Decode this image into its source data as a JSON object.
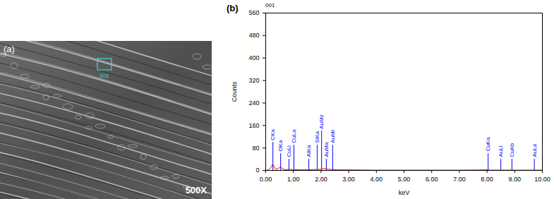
{
  "image": {
    "label": "(a)",
    "magnification": "500X",
    "region_label": "001"
  },
  "chart_data": {
    "type": "line",
    "label": "(b)",
    "title": "001",
    "x_label": "keV",
    "y_label": "Counts",
    "color": "#ff0000",
    "x": [
      0,
      0.1,
      0.2,
      0.25,
      0.3,
      0.35,
      0.4,
      0.5,
      0.55,
      0.6,
      0.7,
      0.8,
      0.9,
      1.0,
      1.2,
      1.5,
      1.7,
      2.0,
      2.1,
      2.2,
      2.4,
      2.6,
      3.0,
      4.0,
      5.0,
      6.0,
      7.0,
      8.0,
      8.1,
      9.0,
      10.0
    ],
    "values": [
      0,
      2,
      12,
      22,
      15,
      5,
      4,
      10,
      12,
      6,
      3,
      3,
      4,
      3,
      2,
      2,
      3,
      4,
      7,
      5,
      3,
      2,
      2,
      1,
      1,
      1,
      1,
      2,
      1,
      1,
      1
    ],
    "xlim": [
      0,
      10
    ],
    "xticks": [
      {
        "value": 0,
        "label": "0.00"
      },
      {
        "value": 1,
        "label": "1.00"
      },
      {
        "value": 2,
        "label": "2.00"
      },
      {
        "value": 3,
        "label": "3.00"
      },
      {
        "value": 4,
        "label": "4.00"
      },
      {
        "value": 5,
        "label": "5.00"
      },
      {
        "value": 6,
        "label": "6.00"
      },
      {
        "value": 7,
        "label": "7.00"
      },
      {
        "value": 8,
        "label": "8.00"
      },
      {
        "value": 9,
        "label": "9.00"
      },
      {
        "value": 10,
        "label": "10.00"
      }
    ],
    "ylim": [
      0,
      560
    ],
    "yticks": [
      0,
      80,
      160,
      240,
      320,
      400,
      480,
      560
    ],
    "grid": false,
    "annotations": [
      {
        "label": "CKa",
        "x": 0.26,
        "y": 100
      },
      {
        "label": "OKa",
        "x": 0.54,
        "y": 60
      },
      {
        "label": "CuLl",
        "x": 0.84,
        "y": 40
      },
      {
        "label": "CuLa",
        "x": 1.02,
        "y": 90
      },
      {
        "label": "AlKa",
        "x": 1.56,
        "y": 40
      },
      {
        "label": "SiKa",
        "x": 1.86,
        "y": 90
      },
      {
        "label": "AuMz",
        "x": 2.02,
        "y": 140
      },
      {
        "label": "AuMa",
        "x": 2.19,
        "y": 40
      },
      {
        "label": "AuMr",
        "x": 2.42,
        "y": 90
      },
      {
        "label": "CuKa",
        "x": 8.04,
        "y": 60
      },
      {
        "label": "AuLl",
        "x": 8.5,
        "y": 40
      },
      {
        "label": "CuKb",
        "x": 8.9,
        "y": 40
      },
      {
        "label": "AuLa",
        "x": 9.71,
        "y": 40
      }
    ]
  }
}
